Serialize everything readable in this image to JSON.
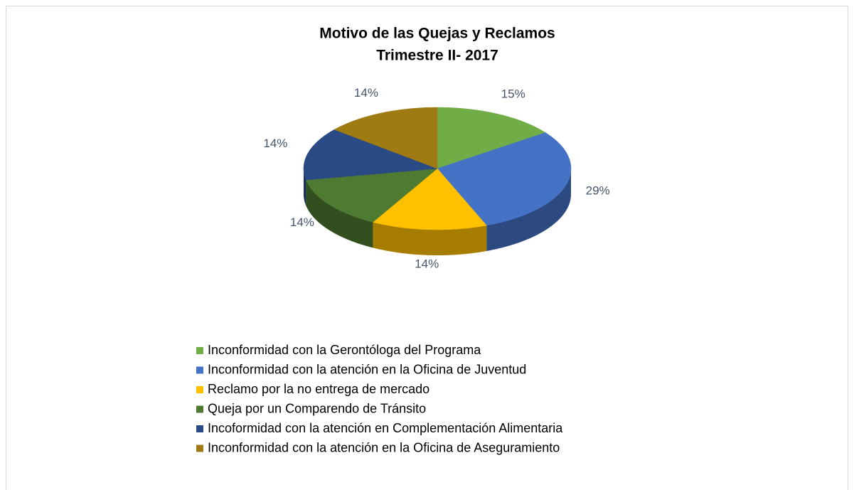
{
  "chart_data": {
    "type": "pie3d",
    "title": "Motivo de las Quejas y Reclamos",
    "subtitle": "Trimestre II- 2017",
    "categories": [
      "Inconformidad con la Gerontóloga del Programa",
      "Inconformidad con la atención en la Oficina de Juventud",
      "Reclamo por la no entrega de mercado",
      "Queja por un Comparendo de Tránsito",
      "Incoformidad con la atención en Complementación Alimentaria",
      "Inconformidad con la atención en la Oficina de Aseguramiento"
    ],
    "values": [
      15,
      29,
      14,
      14,
      14,
      14
    ],
    "value_labels": [
      "15%",
      "29%",
      "14%",
      "14%",
      "14%",
      "14%"
    ],
    "colors": [
      "#70ad47",
      "#4472c4",
      "#ffc000",
      "#4e7a32",
      "#2a4a85",
      "#a07a12"
    ],
    "legend": "bottom"
  }
}
